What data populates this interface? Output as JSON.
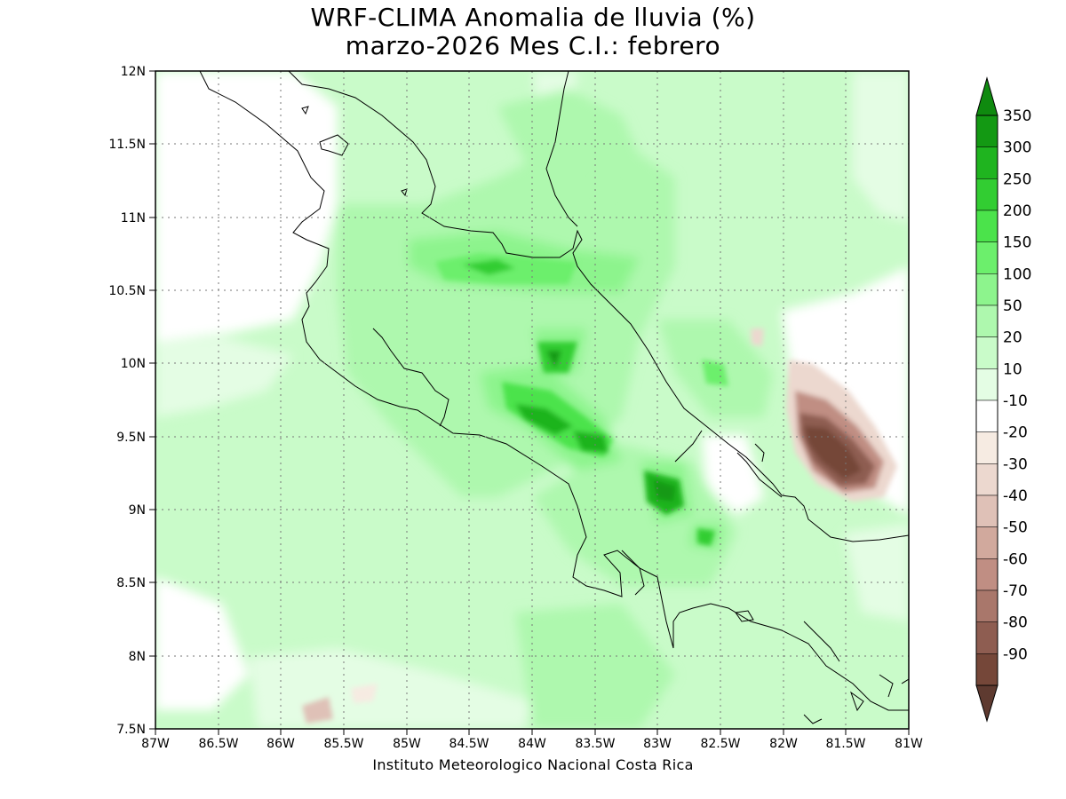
{
  "title_line1": "WRF-CLIMA Anomalia de lluvia (%)",
  "title_line2": "marzo-2026 Mes C.I.: febrero",
  "credit": "Instituto Meteorologico Nacional Costa Rica",
  "x_ticks": [
    "87W",
    "86.5W",
    "86W",
    "85.5W",
    "85W",
    "84.5W",
    "84W",
    "83.5W",
    "83W",
    "82.5W",
    "82W",
    "81.5W",
    "81W"
  ],
  "y_ticks": [
    "12N",
    "11.5N",
    "11N",
    "10.5N",
    "10N",
    "9.5N",
    "9N",
    "8.5N",
    "8N",
    "7.5N"
  ],
  "legend": {
    "levels": [
      {
        "label": "350",
        "color": "#139913"
      },
      {
        "label": "300",
        "color": "#1fb41f"
      },
      {
        "label": "250",
        "color": "#32cd32"
      },
      {
        "label": "200",
        "color": "#4be34b"
      },
      {
        "label": "150",
        "color": "#6cef6c"
      },
      {
        "label": "100",
        "color": "#8df48d"
      },
      {
        "label": "50",
        "color": "#aef8ae"
      },
      {
        "label": "20",
        "color": "#c9fbc9"
      },
      {
        "label": "10",
        "color": "#e4fde4"
      },
      {
        "label": "-10",
        "color": "#ffffff"
      },
      {
        "label": "-20",
        "color": "#f6ebe2"
      },
      {
        "label": "-30",
        "color": "#ecd8cf"
      },
      {
        "label": "-40",
        "color": "#dfc1b7"
      },
      {
        "label": "-50",
        "color": "#d1a99d"
      },
      {
        "label": "-60",
        "color": "#c08e83"
      },
      {
        "label": "-70",
        "color": "#a9776b"
      },
      {
        "label": "-80",
        "color": "#8e5d51"
      },
      {
        "label": "-90",
        "color": "#754739"
      }
    ],
    "top_color": "#0f8a0f",
    "bottom_color": "#5e3a30"
  }
}
